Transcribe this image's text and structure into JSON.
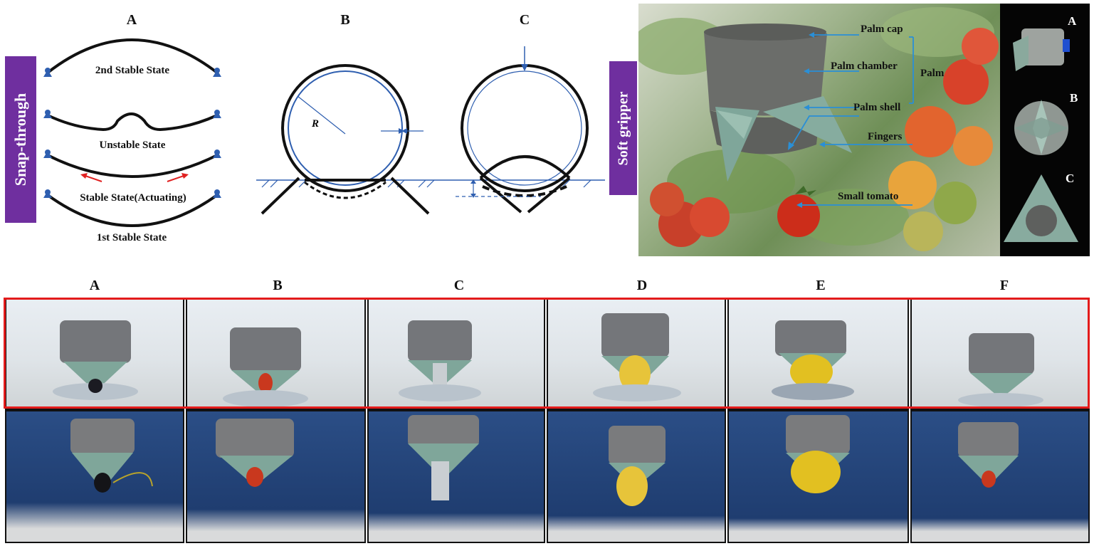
{
  "top_left": {
    "panel_letters": [
      "A",
      "B",
      "C"
    ],
    "band_label": "Snap-through",
    "states": {
      "second_stable": "2nd Stable State",
      "unstable": "Unstable State",
      "actuating": "Stable State(Actuating)",
      "first_stable": "1st Stable State"
    },
    "radius_label": "R"
  },
  "top_right": {
    "band_label": "Soft gripper",
    "callouts": {
      "palm_cap": "Palm cap",
      "palm_chamber": "Palm chamber",
      "palm": "Palm",
      "palm_shell": "Palm shell",
      "fingers": "Fingers",
      "small_tomato": "Small tomato"
    },
    "view_letters": [
      "A",
      "B",
      "C"
    ]
  },
  "bottom": {
    "panel_letters": [
      "A",
      "B",
      "C",
      "D",
      "E",
      "F"
    ],
    "objects": [
      "small bottle",
      "small tomato",
      "metal tube",
      "corn",
      "yellow ball",
      "tomato"
    ]
  },
  "colors": {
    "band": "#6f2f9f",
    "highlight_box": "#e31b1b",
    "diagram_blue": "#2f5fb0",
    "arrow_red": "#e02020",
    "gripper_green": "#7fa69a",
    "gripper_grey": "#6f706e"
  }
}
